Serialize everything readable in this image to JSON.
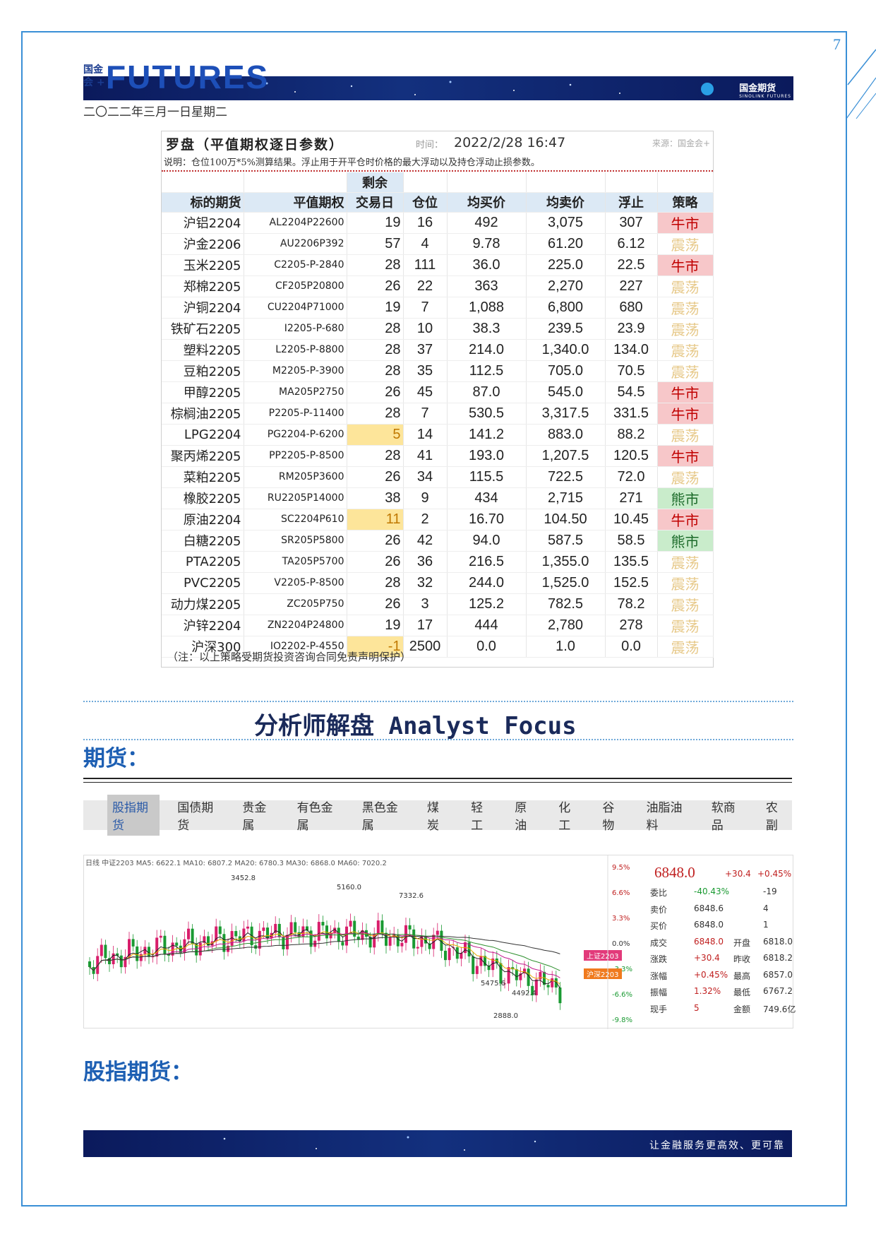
{
  "header": {
    "page_number": "7",
    "logo_cn_line1": "国金",
    "logo_cn_line2": "会 +",
    "logo_en": "FUTURES",
    "brand_cn": "国金期货",
    "brand_en": "SINOLINK FUTURES",
    "date": "二〇二二年三月一日星期二"
  },
  "compass": {
    "title": "罗盘（平值期权逐日参数）",
    "time_label": "时间：",
    "time_value": "2022/2/28 16:47",
    "source": "来源：国金会+",
    "note": "说明：仓位100万*5%测算结果。浮止用于开平仓时价格的最大浮动以及持仓浮动止损参数。",
    "headers": {
      "remaining_top": "剩余",
      "underlying": "标的期货",
      "option": "平值期权",
      "days": "交易日",
      "position": "仓位",
      "avg_buy": "均买价",
      "avg_sell": "均卖价",
      "float_stop": "浮止",
      "strategy": "策略"
    },
    "rows": [
      {
        "underlying": "沪铝2204",
        "option": "AL2204P22600",
        "days": "19",
        "position": "16",
        "buy": "492",
        "sell": "3,075",
        "stop": "307",
        "strategy": "牛市",
        "s": "bull"
      },
      {
        "underlying": "沪金2206",
        "option": "AU2206P392",
        "days": "57",
        "position": "4",
        "buy": "9.78",
        "sell": "61.20",
        "stop": "6.12",
        "strategy": "震荡",
        "s": "osc"
      },
      {
        "underlying": "玉米2205",
        "option": "C2205-P-2840",
        "days": "28",
        "position": "111",
        "buy": "36.0",
        "sell": "225.0",
        "stop": "22.5",
        "strategy": "牛市",
        "s": "bull"
      },
      {
        "underlying": "郑棉2205",
        "option": "CF205P20800",
        "days": "26",
        "position": "22",
        "buy": "363",
        "sell": "2,270",
        "stop": "227",
        "strategy": "震荡",
        "s": "osc"
      },
      {
        "underlying": "沪铜2204",
        "option": "CU2204P71000",
        "days": "19",
        "position": "7",
        "buy": "1,088",
        "sell": "6,800",
        "stop": "680",
        "strategy": "震荡",
        "s": "osc"
      },
      {
        "underlying": "铁矿石2205",
        "option": "I2205-P-680",
        "days": "28",
        "position": "10",
        "buy": "38.3",
        "sell": "239.5",
        "stop": "23.9",
        "strategy": "震荡",
        "s": "osc"
      },
      {
        "underlying": "塑料2205",
        "option": "L2205-P-8800",
        "days": "28",
        "position": "37",
        "buy": "214.0",
        "sell": "1,340.0",
        "stop": "134.0",
        "strategy": "震荡",
        "s": "osc"
      },
      {
        "underlying": "豆粕2205",
        "option": "M2205-P-3900",
        "days": "28",
        "position": "35",
        "buy": "112.5",
        "sell": "705.0",
        "stop": "70.5",
        "strategy": "震荡",
        "s": "osc"
      },
      {
        "underlying": "甲醇2205",
        "option": "MA205P2750",
        "days": "26",
        "position": "45",
        "buy": "87.0",
        "sell": "545.0",
        "stop": "54.5",
        "strategy": "牛市",
        "s": "bull"
      },
      {
        "underlying": "棕榈油2205",
        "option": "P2205-P-11400",
        "days": "28",
        "position": "7",
        "buy": "530.5",
        "sell": "3,317.5",
        "stop": "331.5",
        "strategy": "牛市",
        "s": "bull"
      },
      {
        "underlying": "LPG2204",
        "option": "PG2204-P-6200",
        "days": "5",
        "position": "14",
        "buy": "141.2",
        "sell": "883.0",
        "stop": "88.2",
        "strategy": "震荡",
        "s": "osc",
        "warn": true
      },
      {
        "underlying": "聚丙烯2205",
        "option": "PP2205-P-8500",
        "days": "28",
        "position": "41",
        "buy": "193.0",
        "sell": "1,207.5",
        "stop": "120.5",
        "strategy": "牛市",
        "s": "bull"
      },
      {
        "underlying": "菜粕2205",
        "option": "RM205P3600",
        "days": "26",
        "position": "34",
        "buy": "115.5",
        "sell": "722.5",
        "stop": "72.0",
        "strategy": "震荡",
        "s": "osc"
      },
      {
        "underlying": "橡胶2205",
        "option": "RU2205P14000",
        "days": "38",
        "position": "9",
        "buy": "434",
        "sell": "2,715",
        "stop": "271",
        "strategy": "熊市",
        "s": "bear"
      },
      {
        "underlying": "原油2204",
        "option": "SC2204P610",
        "days": "11",
        "position": "2",
        "buy": "16.70",
        "sell": "104.50",
        "stop": "10.45",
        "strategy": "牛市",
        "s": "bull",
        "warn": true
      },
      {
        "underlying": "白糖2205",
        "option": "SR205P5800",
        "days": "26",
        "position": "42",
        "buy": "94.0",
        "sell": "587.5",
        "stop": "58.5",
        "strategy": "熊市",
        "s": "bear"
      },
      {
        "underlying": "PTA2205",
        "option": "TA205P5700",
        "days": "26",
        "position": "36",
        "buy": "216.5",
        "sell": "1,355.0",
        "stop": "135.5",
        "strategy": "震荡",
        "s": "osc"
      },
      {
        "underlying": "PVC2205",
        "option": "V2205-P-8500",
        "days": "28",
        "position": "32",
        "buy": "244.0",
        "sell": "1,525.0",
        "stop": "152.5",
        "strategy": "震荡",
        "s": "osc"
      },
      {
        "underlying": "动力煤2205",
        "option": "ZC205P750",
        "days": "26",
        "position": "3",
        "buy": "125.2",
        "sell": "782.5",
        "stop": "78.2",
        "strategy": "震荡",
        "s": "osc"
      },
      {
        "underlying": "沪锌2204",
        "option": "ZN2204P24800",
        "days": "19",
        "position": "17",
        "buy": "444",
        "sell": "2,780",
        "stop": "278",
        "strategy": "震荡",
        "s": "osc"
      },
      {
        "underlying": "沪深300",
        "option": "IO2202-P-4550",
        "days": "-1",
        "position": "2500",
        "buy": "0.0",
        "sell": "1.0",
        "stop": "0.0",
        "strategy": "震荡",
        "s": "osc",
        "warn": true
      }
    ],
    "footnote": "（注：以上策略受期货投资咨询合同免责声明保护）"
  },
  "analyst": {
    "title": "分析师解盘 Analyst Focus",
    "futures_heading": "期货：",
    "stock_index_heading": "股指期货："
  },
  "tabs": [
    "股指期货",
    "国债期货",
    "贵金属",
    "有色金属",
    "黑色金属",
    "煤炭",
    "轻工",
    "原油",
    "化工",
    "谷物",
    "油脂油料",
    "软商品",
    "农副"
  ],
  "active_tab": 0,
  "chart_data": {
    "type": "candlestick",
    "legend": "日线 中证2203 MA5: 6622.1 MA10: 6807.2 MA20: 6780.3 MA30: 6868.0 MA60: 7020.2",
    "right_axis": [
      "9.5%",
      "6.6%",
      "3.3%",
      "0.0%",
      "-3.3%",
      "-6.6%",
      "-9.8%"
    ],
    "annotations": [
      "3452.8",
      "5160.0",
      "7332.6",
      "5475.6",
      "4492.4",
      "2888.0"
    ],
    "series_tags": [
      "上证2203",
      "沪深2203"
    ],
    "colors": {
      "up": "#d81e6b",
      "down": "#1a9a32",
      "ma5": "#222222",
      "ma10": "#e6a800",
      "ma20": "#c21c8f",
      "ma30": "#2d8f2d",
      "ma60": "#333333",
      "tag1": "#e23a7a",
      "tag2": "#f07a1e"
    }
  },
  "quote": {
    "price": "6848.0",
    "change": "+30.4",
    "change_pct": "+0.45%",
    "rows": [
      {
        "l1": "委比",
        "v1": "-40.43%",
        "l2": "",
        "v2": "-19"
      },
      {
        "l1": "卖价",
        "v1": "6848.6",
        "l2": "",
        "v2": "4"
      },
      {
        "l1": "买价",
        "v1": "6848.0",
        "l2": "",
        "v2": "1"
      },
      {
        "l1": "成交",
        "v1": "6848.0",
        "l2": "开盘",
        "v2": "6818.0"
      },
      {
        "l1": "涨跌",
        "v1": "+30.4",
        "l2": "昨收",
        "v2": "6818.2"
      },
      {
        "l1": "涨幅",
        "v1": "+0.45%",
        "l2": "最高",
        "v2": "6857.0"
      },
      {
        "l1": "振幅",
        "v1": "1.32%",
        "l2": "最低",
        "v2": "6767.2"
      },
      {
        "l1": "现手",
        "v1": "5",
        "l2": "金额",
        "v2": "749.6亿"
      }
    ]
  },
  "footer": {
    "slogan": "让金融服务更高效、更可靠"
  }
}
